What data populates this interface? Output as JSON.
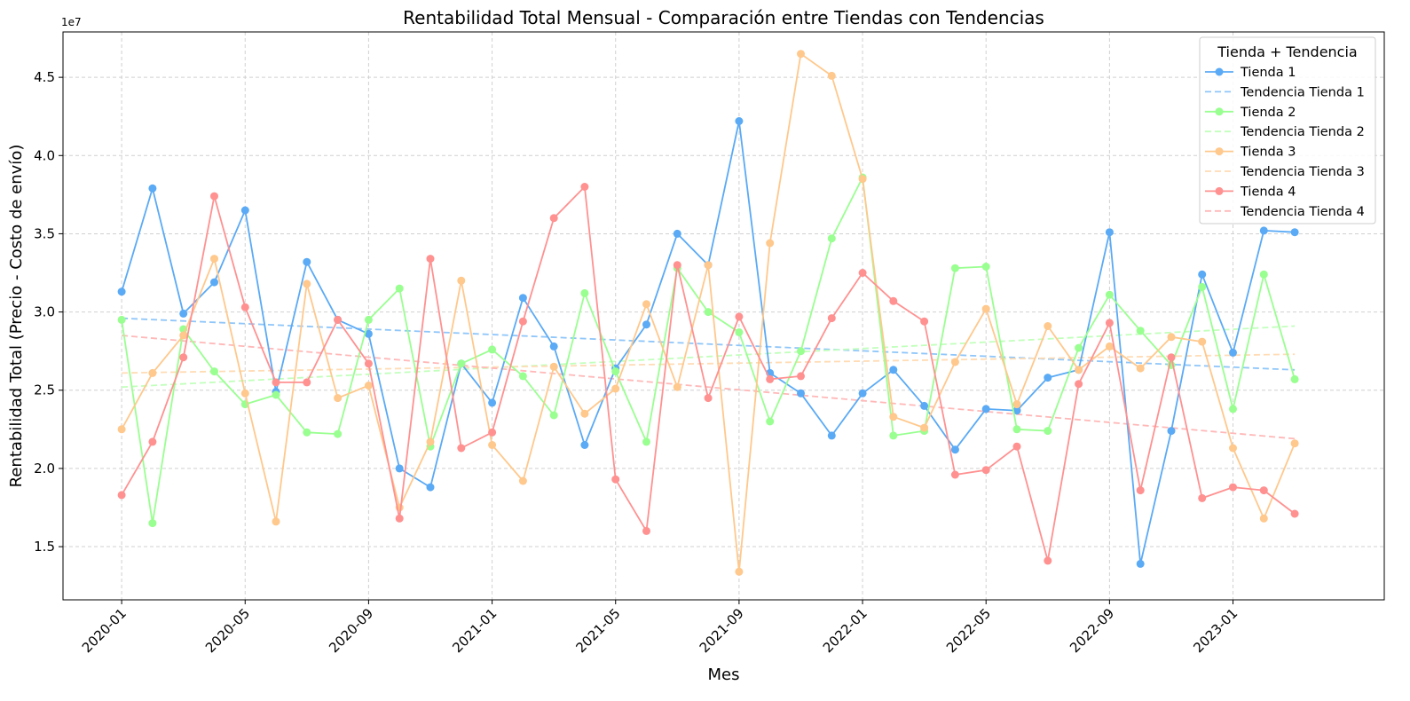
{
  "chart_data": {
    "type": "line",
    "title": "Rentabilidad Total Mensual - Comparación entre Tiendas con Tendencias",
    "xlabel": "Mes",
    "ylabel": "Rentabilidad Total (Precio - Costo de envío)",
    "y_offset_label": "1e7",
    "x_tick_labels": [
      "2020-01",
      "2020-05",
      "2020-09",
      "2021-01",
      "2021-05",
      "2021-09",
      "2022-01",
      "2022-05",
      "2022-09",
      "2023-01"
    ],
    "x_tick_month_index": [
      0,
      4,
      8,
      12,
      16,
      20,
      24,
      28,
      32,
      36
    ],
    "y_ticks": [
      1.5,
      2.0,
      2.5,
      3.0,
      3.5,
      4.0,
      4.5
    ],
    "y_tick_labels": [
      "1.5",
      "2.0",
      "2.5",
      "3.0",
      "3.5",
      "4.0",
      "4.5"
    ],
    "xlim": [
      -1.9,
      40.9
    ],
    "ylim": [
      1.16,
      4.79
    ],
    "grid": true,
    "legend_title": "Tienda + Tendencia",
    "legend_position": "top-right",
    "series": [
      {
        "name": "Tienda 1",
        "color": "#5aaaf5",
        "values": [
          3.13,
          3.79,
          2.99,
          3.19,
          3.65,
          2.49,
          3.32,
          2.95,
          2.86,
          2.0,
          1.88,
          2.67,
          2.42,
          3.09,
          2.78,
          2.15,
          2.64,
          2.92,
          3.5,
          3.3,
          4.22,
          2.61,
          2.48,
          2.21,
          2.48,
          2.63,
          2.4,
          2.12,
          2.38,
          2.37,
          2.58,
          2.63,
          3.51,
          1.39,
          2.24,
          3.24,
          2.74,
          3.52,
          3.51
        ]
      },
      {
        "name": "Tienda 2",
        "color": "#99ff90",
        "values": [
          2.95,
          1.65,
          2.89,
          2.62,
          2.41,
          2.47,
          2.23,
          2.22,
          2.95,
          3.15,
          2.14,
          2.67,
          2.76,
          2.59,
          2.34,
          3.12,
          2.62,
          2.17,
          3.28,
          3.0,
          2.87,
          2.3,
          2.75,
          3.47,
          3.86,
          2.21,
          2.24,
          3.28,
          3.29,
          2.25,
          2.24,
          2.77,
          3.11,
          2.88,
          2.66,
          3.16,
          2.38,
          3.24,
          2.57
        ]
      },
      {
        "name": "Tienda 3",
        "color": "#ffc88c",
        "values": [
          2.25,
          2.61,
          2.85,
          3.34,
          2.48,
          1.66,
          3.18,
          2.45,
          2.53,
          1.75,
          2.17,
          3.2,
          2.15,
          1.92,
          2.65,
          2.35,
          2.51,
          3.05,
          2.52,
          3.3,
          1.34,
          3.44,
          4.65,
          4.51,
          3.85,
          2.33,
          2.26,
          2.68,
          3.02,
          2.41,
          2.91,
          2.63,
          2.78,
          2.64,
          2.84,
          2.81,
          2.13,
          1.68,
          2.16
        ]
      },
      {
        "name": "Tienda 4",
        "color": "#ff9191",
        "values": [
          1.83,
          2.17,
          2.71,
          3.74,
          3.03,
          2.55,
          2.55,
          2.95,
          2.67,
          1.68,
          3.34,
          2.13,
          2.23,
          2.94,
          3.6,
          3.8,
          1.93,
          1.6,
          3.3,
          2.45,
          2.97,
          2.57,
          2.59,
          2.96,
          3.25,
          3.07,
          2.94,
          1.96,
          1.99,
          2.14,
          1.41,
          2.54,
          2.93,
          1.86,
          2.71,
          1.81,
          1.88,
          1.86,
          1.71
        ]
      }
    ],
    "trends": [
      {
        "name": "Tendencia Tienda 1",
        "color": "#8fc6f9",
        "start": 2.96,
        "end": 2.63
      },
      {
        "name": "Tendencia Tienda 2",
        "color": "#c2ffbc",
        "start": 2.52,
        "end": 2.91
      },
      {
        "name": "Tendencia Tienda 3",
        "color": "#ffdcb5",
        "start": 2.61,
        "end": 2.73
      },
      {
        "name": "Tendencia Tienda 4",
        "color": "#ffb8b8",
        "start": 2.85,
        "end": 2.19
      }
    ],
    "legend_entries": [
      {
        "label": "Tienda 1",
        "kind": "line",
        "color": "#5aaaf5"
      },
      {
        "label": "Tendencia Tienda 1",
        "kind": "dashed",
        "color": "#8fc6f9"
      },
      {
        "label": "Tienda 2",
        "kind": "line",
        "color": "#99ff90"
      },
      {
        "label": "Tendencia Tienda 2",
        "kind": "dashed",
        "color": "#c2ffbc"
      },
      {
        "label": "Tienda 3",
        "kind": "line",
        "color": "#ffc88c"
      },
      {
        "label": "Tendencia Tienda 3",
        "kind": "dashed",
        "color": "#ffdcb5"
      },
      {
        "label": "Tienda 4",
        "kind": "line",
        "color": "#ff9191"
      },
      {
        "label": "Tendencia Tienda 4",
        "kind": "dashed",
        "color": "#ffb8b8"
      }
    ]
  }
}
